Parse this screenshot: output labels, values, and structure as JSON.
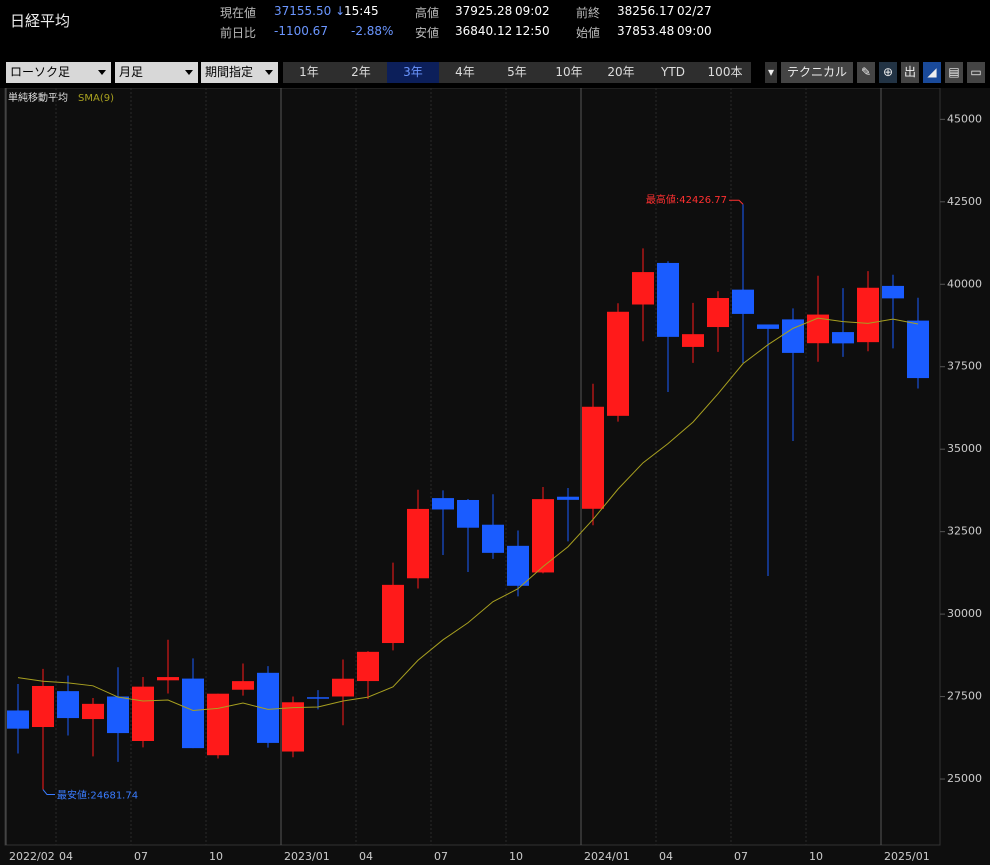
{
  "header": {
    "title": "日経平均",
    "quote": [
      {
        "label": "現在値",
        "value": "37155.50 ↓",
        "time": "15:45"
      },
      {
        "label": "前日比",
        "value": "-1100.67",
        "time": "-2.88%"
      },
      {
        "label": "高値",
        "value": "37925.28",
        "time": "09:02"
      },
      {
        "label": "安値",
        "value": "36840.12",
        "time": "12:50"
      },
      {
        "label": "前終",
        "value": "38256.17",
        "time": "02/27"
      },
      {
        "label": "始値",
        "value": "37853.48",
        "time": "09:00"
      }
    ]
  },
  "toolbar": {
    "dropdowns": [
      "ローソク足",
      "月足",
      "期間指定"
    ],
    "periods": [
      "1年",
      "2年",
      "3年",
      "4年",
      "5年",
      "10年",
      "20年",
      "YTD",
      "100本"
    ],
    "selected_period": "3年",
    "technical": "テクニカル",
    "icon": "出"
  },
  "chart_data": {
    "type": "candlestick",
    "legend_title": "単純移動平均",
    "categories": [
      "2022/02",
      null,
      "04",
      null,
      null,
      "07",
      null,
      null,
      "10",
      null,
      null,
      "2023/01",
      null,
      null,
      "04",
      null,
      null,
      "07",
      null,
      null,
      "10",
      null,
      null,
      "2024/01",
      null,
      null,
      "04",
      null,
      null,
      "07",
      null,
      null,
      "10",
      null,
      null,
      "2025/01",
      null
    ],
    "open": [
      27078,
      26577,
      27665,
      26818,
      27502,
      26153,
      27993,
      28045,
      25722,
      27707,
      28220,
      25834,
      27480,
      27502,
      27970,
      29123,
      31086,
      33517,
      33460,
      32710,
      32070,
      31263,
      33559,
      33193,
      36011,
      39386,
      40646,
      38100,
      38703,
      39837,
      38781,
      38935,
      38213,
      38550,
      38245,
      39950,
      38898
    ],
    "high": [
      27880,
      28338,
      28134,
      27458,
      28389,
      28093,
      29222,
      28659,
      27587,
      28502,
      28423,
      27502,
      27696,
      28623,
      28879,
      31560,
      33772,
      33753,
      33488,
      33634,
      32533,
      33853,
      33824,
      36984,
      39426,
      41087,
      40697,
      39437,
      39789,
      42426.77,
      38781,
      39270,
      40257,
      39884,
      40398,
      40288,
      39590
    ],
    "low": [
      25775,
      24681.74,
      26319,
      25688,
      25520,
      25961,
      27594,
      25937,
      25621,
      27527,
      25953,
      25662,
      27110,
      26632,
      27427,
      28900,
      30778,
      31791,
      31275,
      31674,
      30538,
      31235,
      32205,
      32693,
      35837,
      38271,
      36733,
      37617,
      37950,
      37611,
      31156,
      35247,
      37651,
      37800,
      37968,
      38055,
      36840
    ],
    "close": [
      26527,
      27821,
      26848,
      27279,
      26393,
      27801,
      28091,
      25937,
      27587,
      27968,
      26095,
      27327,
      27446,
      28041,
      28856,
      30887,
      33189,
      33172,
      32619,
      31857,
      30858,
      33486,
      33464,
      36286,
      39166,
      40369,
      38405,
      38487,
      39583,
      39101,
      38647,
      37919,
      39081,
      38208,
      39894,
      39572,
      37155.5
    ],
    "up_color": "#ff1a1a",
    "down_color": "#1a5cff",
    "series": [
      {
        "name": "SMA(9)",
        "color": "#a8a020",
        "values": [
          28073,
          27965,
          27916,
          27826,
          27486,
          27365,
          27395,
          27078,
          27143,
          27303,
          27111,
          27164,
          27183,
          27366,
          27483,
          27794,
          28600,
          29220,
          29737,
          30377,
          30769,
          31441,
          32043,
          32869,
          33789,
          34586,
          35168,
          35820,
          36678,
          37594,
          38168,
          38663,
          38973,
          38867,
          38814,
          38944,
          38796
        ]
      }
    ],
    "annotations": [
      {
        "label": "最高値:42426.77",
        "value": 42426.77,
        "color": "#ff3030"
      },
      {
        "label": "最安値:24681.74",
        "value": 24681.74,
        "color": "#3a7cff"
      }
    ],
    "ylim": [
      23000,
      45950
    ],
    "yticks": [
      25000,
      27500,
      30000,
      32500,
      35000,
      37500,
      40000,
      42500,
      45000
    ],
    "grid": true
  }
}
